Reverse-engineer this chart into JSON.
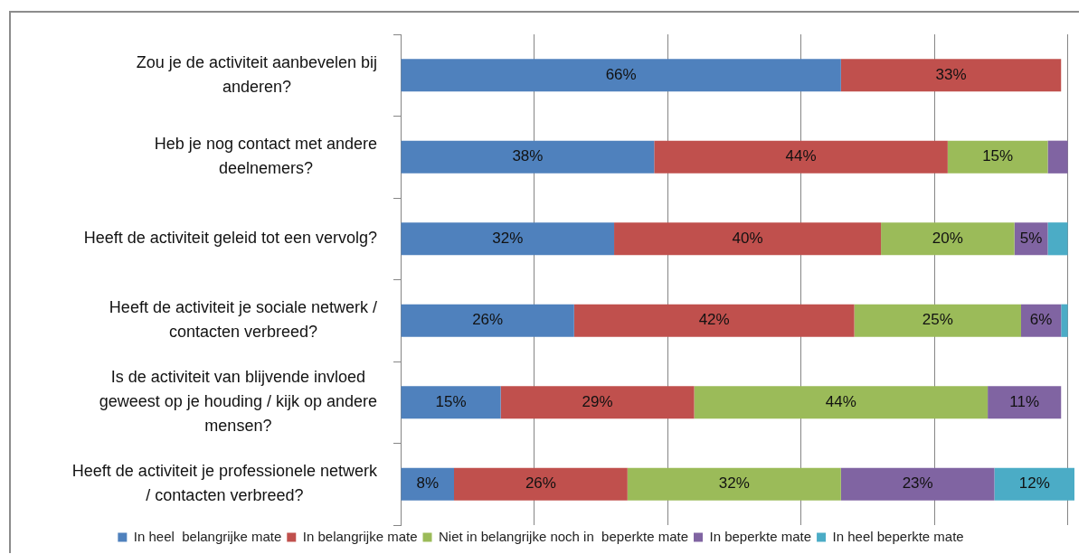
{
  "chart_data": {
    "type": "bar",
    "orientation": "horizontal",
    "stacked": true,
    "categories": [
      "Zou je de activiteit aanbevelen bij anderen?",
      "Heb je nog contact met andere deelnemers?",
      "Heeft de activiteit geleid tot een vervolg?",
      "Heeft de activiteit je sociale netwerk / contacten verbreed?",
      "Is de activiteit van blijvende invloed geweest op je houding / kijk op andere mensen?",
      "Heeft de activiteit je professionele netwerk / contacten verbreed?"
    ],
    "series": [
      {
        "name": "In heel  belangrijke mate",
        "color": "#4f81bd",
        "values": [
          66,
          38,
          32,
          26,
          15,
          8
        ],
        "value_labels": [
          "66%",
          "38%",
          "32%",
          "26%",
          "15%",
          "8%"
        ]
      },
      {
        "name": "In belangrijke mate",
        "color": "#c0504d",
        "values": [
          33,
          44,
          40,
          42,
          29,
          26
        ],
        "value_labels": [
          "33%",
          "44%",
          "40%",
          "42%",
          "29%",
          "26%"
        ]
      },
      {
        "name": "Niet in belangrijke noch in  beperkte mate",
        "color": "#9bbb59",
        "values": [
          null,
          15,
          20,
          25,
          44,
          32
        ],
        "value_labels": [
          null,
          "15%",
          "20%",
          "25%",
          "44%",
          "32%"
        ]
      },
      {
        "name": "In beperkte mate",
        "color": "#8064a2",
        "values": [
          null,
          3,
          5,
          6,
          11,
          23
        ],
        "value_labels": [
          null,
          null,
          "5%",
          "6%",
          "11%",
          "23%"
        ]
      },
      {
        "name": "In heel beperkte mate",
        "color": "#4bacc6",
        "values": [
          null,
          null,
          3,
          1,
          null,
          12
        ],
        "value_labels": [
          null,
          null,
          null,
          null,
          null,
          "12%"
        ]
      }
    ],
    "xlim": [
      0,
      101
    ],
    "xticks": [
      {
        "value": 0,
        "label": null
      },
      {
        "value": 20,
        "label": null
      },
      {
        "value": 40,
        "label": null
      },
      {
        "value": 60,
        "label": null
      },
      {
        "value": 80,
        "label": null
      },
      {
        "value": 100,
        "label": null
      }
    ],
    "grid": "x",
    "legend": "bottom",
    "tick_labels": "y"
  }
}
